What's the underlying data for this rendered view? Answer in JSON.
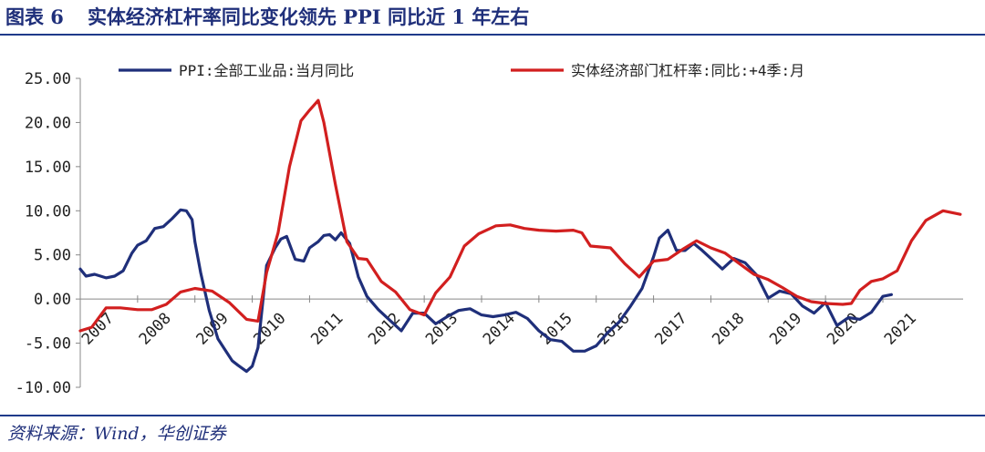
{
  "header": {
    "figure_label": "图表 6",
    "title": "实体经济杠杆率同比变化领先 PPI 同比近 1 年左右"
  },
  "footer": {
    "source": "资料来源：Wind，华创证券"
  },
  "colors": {
    "ppi": "#1f2f7a",
    "leverage": "#d21f1f",
    "axis": "#888888",
    "brand": "#1f3a8a"
  },
  "chart_data": {
    "type": "line",
    "title": "实体经济杠杆率同比变化领先 PPI 同比近 1 年左右",
    "xlabel": "",
    "ylabel": "",
    "xlim": [
      2007.0,
      2022.4
    ],
    "ylim": [
      -10,
      25
    ],
    "y_ticks": [
      25,
      20,
      15,
      10,
      5,
      0,
      -5,
      -10
    ],
    "y_tick_labels": [
      "25.00",
      "20.00",
      "15.00",
      "10.00",
      "5.00",
      "0.00",
      "-5.00",
      "-10.00"
    ],
    "x_ticks": [
      2007,
      2008,
      2009,
      2010,
      2011,
      2012,
      2013,
      2014,
      2015,
      2016,
      2017,
      2018,
      2019,
      2020,
      2021
    ],
    "x_tick_labels": [
      "2007",
      "2008",
      "2009",
      "2010",
      "2011",
      "2012",
      "2013",
      "2014",
      "2015",
      "2016",
      "2017",
      "2018",
      "2019",
      "2020",
      "2021"
    ],
    "grid": false,
    "legend_position": "top",
    "series": [
      {
        "name": "PPI:全部工业品:当月同比",
        "color": "#1f2f7a",
        "x": [
          2007.0,
          2007.1,
          2007.25,
          2007.45,
          2007.6,
          2007.75,
          2007.9,
          2008.0,
          2008.15,
          2008.3,
          2008.45,
          2008.6,
          2008.75,
          2008.85,
          2008.95,
          2009.0,
          2009.1,
          2009.25,
          2009.4,
          2009.55,
          2009.65,
          2009.75,
          2009.9,
          2010.0,
          2010.1,
          2010.25,
          2010.4,
          2010.5,
          2010.6,
          2010.75,
          2010.9,
          2011.0,
          2011.15,
          2011.25,
          2011.35,
          2011.45,
          2011.55,
          2011.7,
          2011.85,
          2012.0,
          2012.2,
          2012.4,
          2012.6,
          2012.8,
          2013.0,
          2013.2,
          2013.4,
          2013.6,
          2013.8,
          2014.0,
          2014.2,
          2014.4,
          2014.6,
          2014.8,
          2015.0,
          2015.2,
          2015.4,
          2015.6,
          2015.8,
          2016.0,
          2016.2,
          2016.4,
          2016.6,
          2016.8,
          2017.0,
          2017.1,
          2017.25,
          2017.4,
          2017.55,
          2017.7,
          2017.85,
          2018.0,
          2018.2,
          2018.4,
          2018.6,
          2018.8,
          2019.0,
          2019.2,
          2019.4,
          2019.6,
          2019.8,
          2020.0,
          2020.2,
          2020.4,
          2020.6,
          2020.8,
          2021.0,
          2021.15
        ],
        "y": [
          3.4,
          2.6,
          2.8,
          2.4,
          2.6,
          3.2,
          5.2,
          6.1,
          6.6,
          8.0,
          8.2,
          9.1,
          10.1,
          10.0,
          9.0,
          6.5,
          3.0,
          -1.3,
          -4.5,
          -6.0,
          -7.0,
          -7.5,
          -8.2,
          -7.6,
          -5.5,
          3.8,
          5.8,
          6.8,
          7.1,
          4.5,
          4.3,
          5.8,
          6.5,
          7.2,
          7.3,
          6.7,
          7.5,
          6.3,
          2.5,
          0.3,
          -1.2,
          -2.4,
          -3.6,
          -1.6,
          -1.6,
          -2.8,
          -2.0,
          -1.3,
          -1.1,
          -1.8,
          -2.0,
          -1.8,
          -1.5,
          -2.2,
          -3.6,
          -4.6,
          -4.8,
          -5.9,
          -5.9,
          -5.3,
          -3.8,
          -2.6,
          -0.8,
          1.2,
          4.8,
          6.9,
          7.8,
          5.5,
          5.5,
          6.3,
          5.5,
          4.6,
          3.4,
          4.6,
          4.1,
          2.7,
          0.1,
          0.9,
          0.6,
          -0.8,
          -1.6,
          -0.4,
          -3.0,
          -2.1,
          -2.3,
          -1.5,
          0.3,
          0.5
        ]
      },
      {
        "name": "实体经济部门杠杆率:同比:+4季:月",
        "color": "#d21f1f",
        "x": [
          2007.0,
          2007.2,
          2007.45,
          2007.7,
          2008.0,
          2008.25,
          2008.5,
          2008.75,
          2009.0,
          2009.3,
          2009.6,
          2009.9,
          2010.1,
          2010.25,
          2010.45,
          2010.65,
          2010.85,
          2011.0,
          2011.15,
          2011.25,
          2011.45,
          2011.65,
          2011.85,
          2012.0,
          2012.25,
          2012.5,
          2012.75,
          2013.0,
          2013.2,
          2013.45,
          2013.7,
          2013.95,
          2014.25,
          2014.5,
          2014.75,
          2015.0,
          2015.3,
          2015.6,
          2015.75,
          2015.9,
          2016.25,
          2016.5,
          2016.75,
          2017.0,
          2017.25,
          2017.5,
          2017.75,
          2018.0,
          2018.25,
          2018.5,
          2018.75,
          2019.0,
          2019.25,
          2019.5,
          2019.75,
          2020.0,
          2020.3,
          2020.45,
          2020.6,
          2020.8,
          2021.0,
          2021.25,
          2021.5,
          2021.75,
          2022.05,
          2022.35
        ],
        "y": [
          -3.6,
          -3.2,
          -1.0,
          -1.0,
          -1.2,
          -1.2,
          -0.6,
          0.8,
          1.2,
          0.9,
          -0.4,
          -2.3,
          -2.5,
          3.0,
          7.5,
          15.0,
          20.2,
          21.4,
          22.5,
          20.0,
          13.0,
          6.5,
          4.6,
          4.5,
          2.0,
          0.8,
          -1.2,
          -1.8,
          0.7,
          2.5,
          6.0,
          7.4,
          8.3,
          8.4,
          8.0,
          7.8,
          7.7,
          7.8,
          7.5,
          6.0,
          5.8,
          4.0,
          2.5,
          4.3,
          4.5,
          5.6,
          6.6,
          5.8,
          5.2,
          4.0,
          2.8,
          2.2,
          1.3,
          0.3,
          -0.3,
          -0.5,
          -0.6,
          -0.5,
          1.0,
          2.0,
          2.3,
          3.2,
          6.6,
          8.9,
          10.0,
          9.6
        ]
      }
    ]
  }
}
